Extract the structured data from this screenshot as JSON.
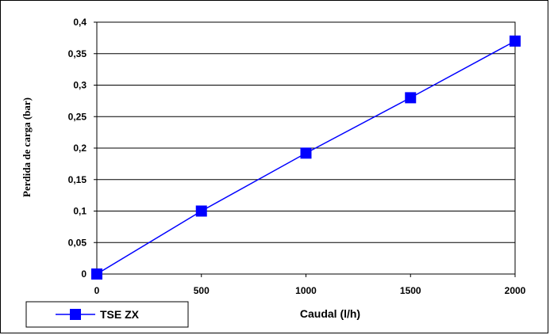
{
  "chart_data": {
    "type": "line",
    "xlabel": "Caudal (l/h)",
    "ylabel": "Perdida de carga (bar)",
    "xlim": [
      0,
      2000
    ],
    "ylim": [
      0,
      0.4
    ],
    "x_ticks": [
      0,
      500,
      1000,
      1500,
      2000
    ],
    "x_tick_labels": [
      "0",
      "500",
      "1000",
      "1500",
      "2000"
    ],
    "y_ticks": [
      0,
      0.05,
      0.1,
      0.15,
      0.2,
      0.25,
      0.3,
      0.35,
      0.4
    ],
    "y_tick_labels": [
      "0",
      "0,05",
      "0,1",
      "0,15",
      "0,2",
      "0,25",
      "0,3",
      "0,35",
      "0,4"
    ],
    "grid": "horizontal",
    "legend_position": "bottom-left",
    "series": [
      {
        "name": "TSE ZX",
        "color": "#0000ff",
        "marker": "square",
        "x": [
          0,
          500,
          1000,
          1500,
          2000
        ],
        "y": [
          0,
          0.1,
          0.192,
          0.28,
          0.37
        ]
      }
    ]
  }
}
